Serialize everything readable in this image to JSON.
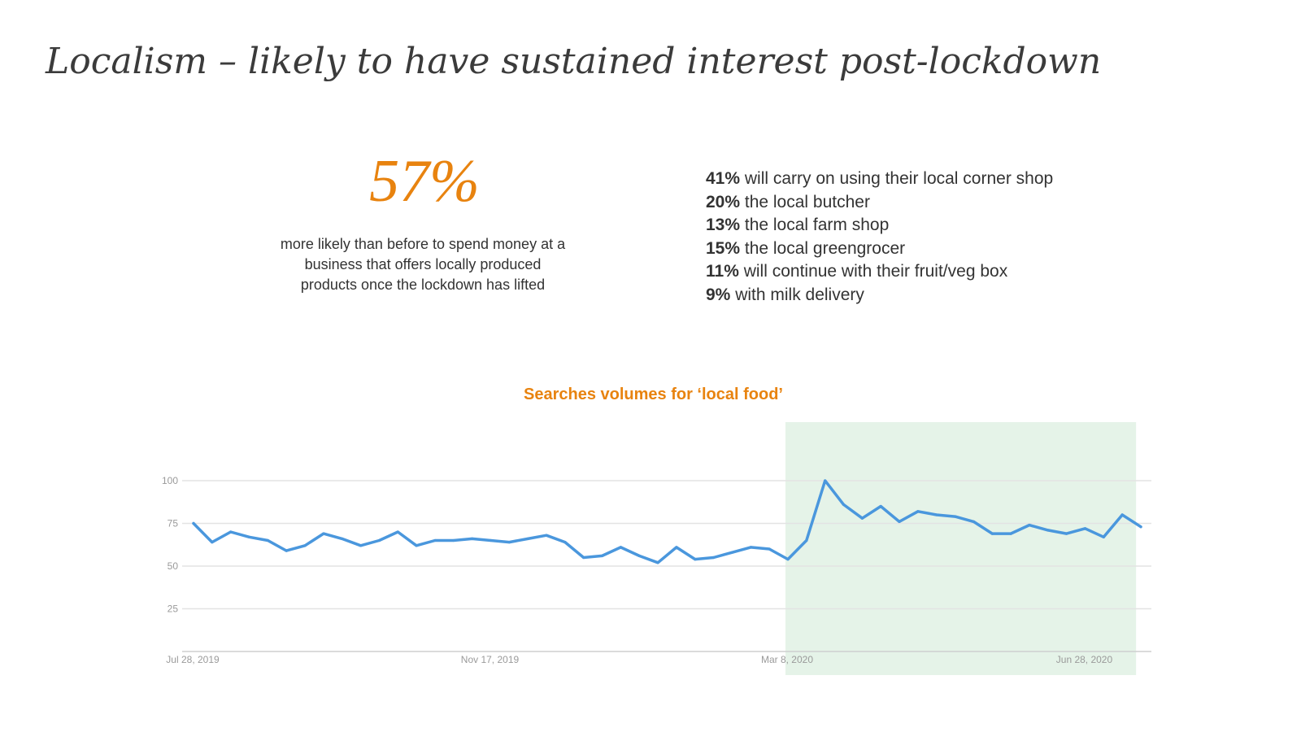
{
  "title": "Localism – likely to have sustained interest post-lockdown",
  "headline_stat": {
    "value": "57%",
    "description_lines": [
      "more likely than before to spend money at a",
      "business that offers locally produced",
      "products once the lockdown has lifted"
    ]
  },
  "breakdown": [
    {
      "pct": "41%",
      "text": " will carry on using their local corner shop"
    },
    {
      "pct": "20%",
      "text": " the local butcher"
    },
    {
      "pct": "13%",
      "text": " the local farm shop"
    },
    {
      "pct": "15%",
      "text": " the local greengrocer"
    },
    {
      "pct": "11%",
      "text": " will continue with their fruit/veg box"
    },
    {
      "pct": "9%",
      "text": " with milk delivery"
    }
  ],
  "colors": {
    "accent": "#e8830f",
    "line": "#4a97dd",
    "highlight": "#e5f3e8"
  },
  "chart_data": {
    "type": "line",
    "title": "Searches volumes for ‘local food’",
    "xlabel": "",
    "ylabel": "",
    "ylim": [
      0,
      100
    ],
    "yticks": [
      25,
      50,
      75,
      100
    ],
    "xtick_labels": [
      "Jul 28, 2019",
      "Nov 17, 2019",
      "Mar 8, 2020",
      "Jun 28, 2020"
    ],
    "grid": true,
    "highlight_region": {
      "from": "2020-03-08",
      "to": "2020-07-12"
    },
    "series": [
      {
        "x": [
          "2019-07-28",
          "2019-08-04",
          "2019-08-11",
          "2019-08-18",
          "2019-08-25",
          "2019-09-01",
          "2019-09-08",
          "2019-09-15",
          "2019-09-22",
          "2019-09-29",
          "2019-10-06",
          "2019-10-13",
          "2019-10-20",
          "2019-10-27",
          "2019-11-03",
          "2019-11-10",
          "2019-11-17",
          "2019-11-24",
          "2019-12-01",
          "2019-12-08",
          "2019-12-15",
          "2019-12-22",
          "2019-12-29",
          "2020-01-05",
          "2020-01-12",
          "2020-01-19",
          "2020-01-26",
          "2020-02-02",
          "2020-02-09",
          "2020-02-16",
          "2020-02-23",
          "2020-03-01",
          "2020-03-08",
          "2020-03-15",
          "2020-03-22",
          "2020-03-29",
          "2020-04-05",
          "2020-04-12",
          "2020-04-19",
          "2020-04-26",
          "2020-05-03",
          "2020-05-10",
          "2020-05-17",
          "2020-05-24",
          "2020-05-31",
          "2020-06-07",
          "2020-06-14",
          "2020-06-21",
          "2020-06-28",
          "2020-07-05",
          "2020-07-12"
        ],
        "values": [
          75,
          64,
          70,
          67,
          65,
          59,
          62,
          69,
          66,
          62,
          65,
          70,
          62,
          65,
          65,
          66,
          65,
          64,
          66,
          68,
          64,
          55,
          56,
          61,
          56,
          52,
          61,
          54,
          55,
          58,
          61,
          60,
          54,
          65,
          100,
          86,
          78,
          85,
          76,
          82,
          80,
          79,
          76,
          69,
          69,
          74,
          71,
          69,
          72,
          67,
          80
        ]
      },
      {
        "x": [
          "2020-07-19"
        ],
        "values": [
          73
        ]
      }
    ]
  }
}
